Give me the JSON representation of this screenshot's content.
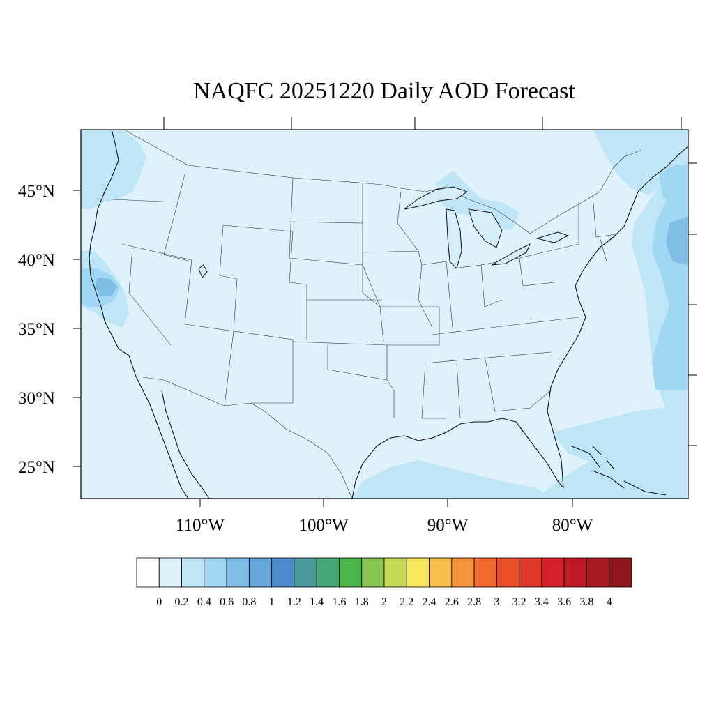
{
  "map": {
    "title": "NAQFC 20251220 Daily AOD Forecast",
    "lat_labels": [
      "45°N",
      "40°N",
      "35°N",
      "30°N",
      "25°N"
    ],
    "lon_labels": [
      "110°W",
      "100°W",
      "90°W",
      "80°W"
    ],
    "field_name": "AOD",
    "background_level_color": "#dff2fb"
  },
  "colorbar": {
    "labels": [
      "0",
      "0.2",
      "0.4",
      "0.6",
      "0.8",
      "1",
      "1.2",
      "1.4",
      "1.6",
      "1.8",
      "2",
      "2.2",
      "2.4",
      "2.6",
      "2.8",
      "3",
      "3.2",
      "3.4",
      "3.6",
      "3.8",
      "4"
    ],
    "colors": [
      "#ffffff",
      "#dff2fb",
      "#bfe6f7",
      "#a0d8f4",
      "#7fbde6",
      "#65a6db",
      "#4d8ccb",
      "#4a9a9d",
      "#48a778",
      "#49b54b",
      "#86c54f",
      "#c5d956",
      "#f7e75a",
      "#f6be4a",
      "#f5953e",
      "#f26a30",
      "#e8502c",
      "#df3a29",
      "#d42028",
      "#bd1a24",
      "#a81a20",
      "#8e171d"
    ]
  }
}
